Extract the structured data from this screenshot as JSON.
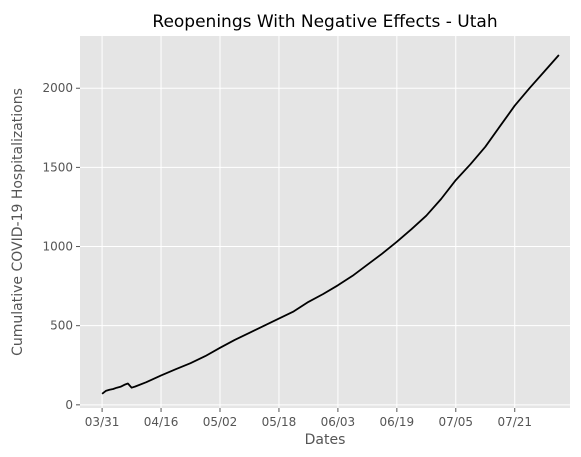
{
  "chart_data": {
    "type": "line",
    "title": "Reopenings With Negative Effects - Utah",
    "xlabel": "Dates",
    "ylabel": "Cumulative COVID-19 Hospitalizations",
    "x_tick_labels": [
      "03/31",
      "04/16",
      "05/02",
      "05/18",
      "06/03",
      "06/19",
      "07/05",
      "07/21"
    ],
    "x_tick_dates": [
      "2020-03-31",
      "2020-04-16",
      "2020-05-02",
      "2020-05-18",
      "2020-06-03",
      "2020-06-19",
      "2020-07-05",
      "2020-07-21"
    ],
    "y_ticks": [
      0,
      500,
      1000,
      1500,
      2000
    ],
    "xlim": [
      "2020-03-25",
      "2020-08-05"
    ],
    "ylim": [
      -20,
      2330
    ],
    "grid": true,
    "colors": {
      "background": "#e5e5e5",
      "grid": "#ffffff",
      "line": "#000000"
    },
    "series": [
      {
        "color": "#000000",
        "points": [
          {
            "x": "2020-03-31",
            "y": 70
          },
          {
            "x": "2020-04-01",
            "y": 88
          },
          {
            "x": "2020-04-02",
            "y": 95
          },
          {
            "x": "2020-04-03",
            "y": 100
          },
          {
            "x": "2020-04-04",
            "y": 108
          },
          {
            "x": "2020-04-05",
            "y": 114
          },
          {
            "x": "2020-04-06",
            "y": 126
          },
          {
            "x": "2020-04-07",
            "y": 135
          },
          {
            "x": "2020-04-08",
            "y": 108
          },
          {
            "x": "2020-04-09",
            "y": 116
          },
          {
            "x": "2020-04-12",
            "y": 143
          },
          {
            "x": "2020-04-16",
            "y": 186
          },
          {
            "x": "2020-04-20",
            "y": 225
          },
          {
            "x": "2020-04-24",
            "y": 263
          },
          {
            "x": "2020-04-28",
            "y": 308
          },
          {
            "x": "2020-05-02",
            "y": 360
          },
          {
            "x": "2020-05-06",
            "y": 410
          },
          {
            "x": "2020-05-10",
            "y": 455
          },
          {
            "x": "2020-05-14",
            "y": 500
          },
          {
            "x": "2020-05-18",
            "y": 545
          },
          {
            "x": "2020-05-22",
            "y": 590
          },
          {
            "x": "2020-05-26",
            "y": 650
          },
          {
            "x": "2020-05-30",
            "y": 700
          },
          {
            "x": "2020-06-03",
            "y": 755
          },
          {
            "x": "2020-06-07",
            "y": 815
          },
          {
            "x": "2020-06-11",
            "y": 885
          },
          {
            "x": "2020-06-15",
            "y": 955
          },
          {
            "x": "2020-06-19",
            "y": 1030
          },
          {
            "x": "2020-06-23",
            "y": 1110
          },
          {
            "x": "2020-06-27",
            "y": 1195
          },
          {
            "x": "2020-07-01",
            "y": 1300
          },
          {
            "x": "2020-07-05",
            "y": 1420
          },
          {
            "x": "2020-07-09",
            "y": 1520
          },
          {
            "x": "2020-07-13",
            "y": 1630
          },
          {
            "x": "2020-07-17",
            "y": 1760
          },
          {
            "x": "2020-07-21",
            "y": 1890
          },
          {
            "x": "2020-07-25",
            "y": 2000
          },
          {
            "x": "2020-07-29",
            "y": 2105
          },
          {
            "x": "2020-08-02",
            "y": 2210
          }
        ]
      }
    ]
  }
}
